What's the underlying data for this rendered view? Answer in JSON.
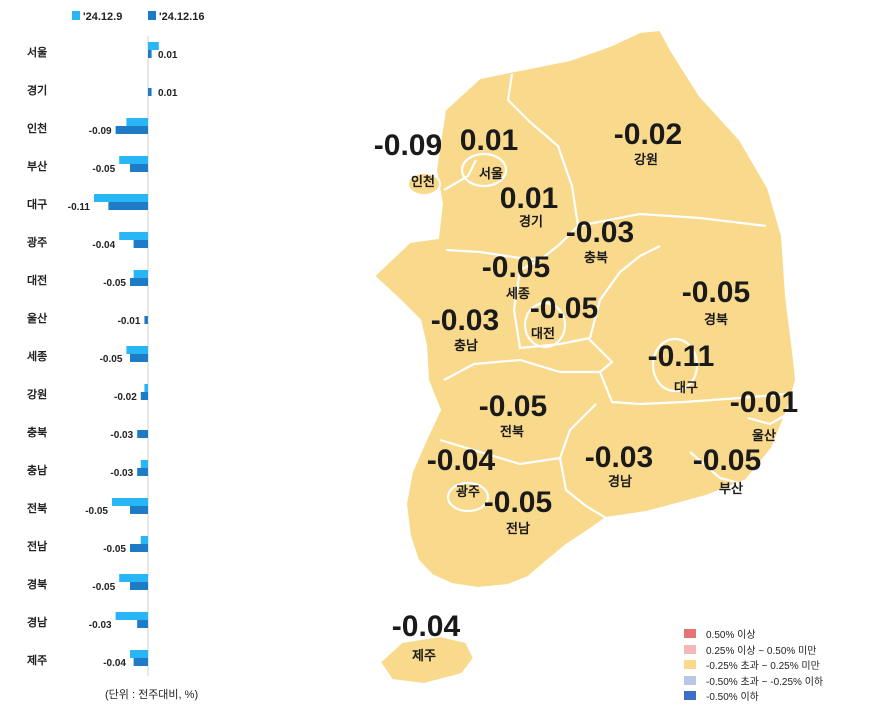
{
  "chart_data": [
    {
      "type": "bar",
      "orientation": "horizontal",
      "series": [
        {
          "name": "'24.12.9",
          "color": "#29B6F6",
          "values": [
            0.03,
            0.0,
            -0.06,
            -0.08,
            -0.15,
            -0.08,
            -0.04,
            0.0,
            -0.06,
            -0.01,
            0.0,
            -0.02,
            -0.1,
            -0.02,
            -0.08,
            -0.09,
            -0.05
          ]
        },
        {
          "name": "'24.12.16",
          "color": "#1E7BC6",
          "values": [
            0.01,
            0.01,
            -0.09,
            -0.05,
            -0.11,
            -0.04,
            -0.05,
            -0.01,
            -0.05,
            -0.02,
            -0.03,
            -0.03,
            -0.05,
            -0.05,
            -0.05,
            -0.03,
            -0.04
          ]
        }
      ],
      "categories": [
        "서울",
        "경기",
        "인천",
        "부산",
        "대구",
        "광주",
        "대전",
        "울산",
        "세종",
        "강원",
        "충북",
        "충남",
        "전북",
        "전남",
        "경북",
        "경남",
        "제주"
      ],
      "value_labels": [
        "0.01",
        "0.01",
        "-0.09",
        "-0.05",
        "-0.11",
        "-0.04",
        "-0.05",
        "-0.01",
        "-0.05",
        "-0.02",
        "-0.03",
        "-0.03",
        "-0.05",
        "-0.05",
        "-0.05",
        "-0.03",
        "-0.04"
      ],
      "legend_position": "top-left",
      "note": "(단위 : 전주대비, %)"
    },
    {
      "type": "choropleth-map",
      "regions": [
        {
          "name": "인천",
          "value": "-0.09"
        },
        {
          "name": "서울",
          "value": "0.01"
        },
        {
          "name": "경기",
          "value": "0.01"
        },
        {
          "name": "강원",
          "value": "-0.02"
        },
        {
          "name": "충북",
          "value": "-0.03"
        },
        {
          "name": "세종",
          "value": "-0.05"
        },
        {
          "name": "대전",
          "value": "-0.05"
        },
        {
          "name": "충남",
          "value": "-0.03"
        },
        {
          "name": "경북",
          "value": "-0.05"
        },
        {
          "name": "대구",
          "value": "-0.11"
        },
        {
          "name": "울산",
          "value": "-0.01"
        },
        {
          "name": "전북",
          "value": "-0.05"
        },
        {
          "name": "광주",
          "value": "-0.04"
        },
        {
          "name": "전남",
          "value": "-0.05"
        },
        {
          "name": "경남",
          "value": "-0.03"
        },
        {
          "name": "부산",
          "value": "-0.05"
        },
        {
          "name": "제주",
          "value": "-0.04"
        }
      ],
      "legend": [
        {
          "label": "0.50% 이상",
          "color": "#E57373"
        },
        {
          "label": "0.25% 이상 ~ 0.50% 미만",
          "color": "#F4B6B6"
        },
        {
          "label": "-0.25% 초과 ~ 0.25% 미만",
          "color": "#F9D98B"
        },
        {
          "label": "-0.50% 초과 ~ -0.25% 이하",
          "color": "#B8C6E8"
        },
        {
          "label": "-0.50% 이하",
          "color": "#3F6FC4"
        }
      ],
      "fill_color": "#F9D98B"
    }
  ]
}
